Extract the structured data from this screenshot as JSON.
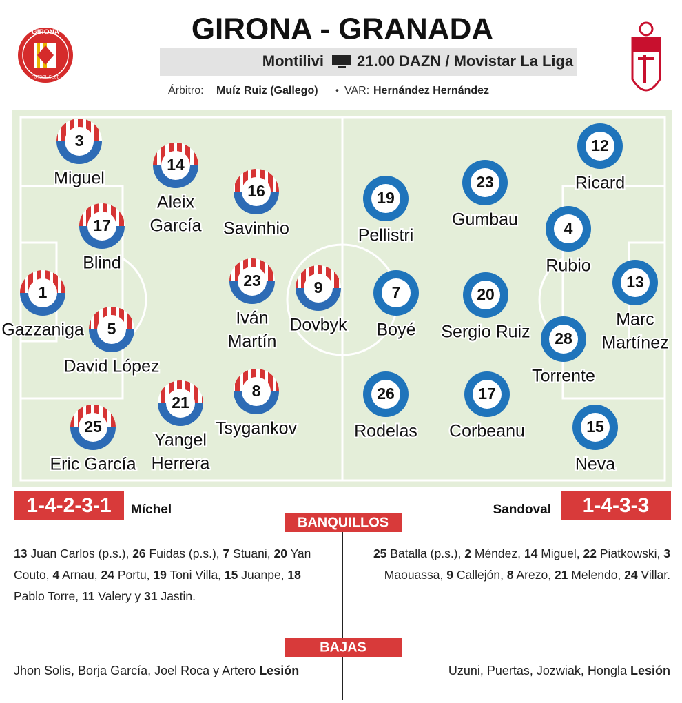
{
  "header": {
    "title": "GIRONA - GRANADA",
    "venue": "Montilivi",
    "broadcast": "21.00 DAZN / Movistar La Liga",
    "referee_label": "Árbitro:",
    "referee": "Muíz Ruiz (Gallego)",
    "separator": "•",
    "var_label": "VAR:",
    "var": "Hernández Hernández",
    "home_logo_text": "GIRONA",
    "home_logo_subtext": "FUTBOL CLUB"
  },
  "girona": {
    "formation": "1-4-2-3-1",
    "coach": "Míchel",
    "players": [
      {
        "number": 3,
        "name_lines": [
          "Miguel"
        ]
      },
      {
        "number": 14,
        "name_lines": [
          "Aleix",
          "García"
        ]
      },
      {
        "number": 16,
        "name_lines": [
          "Savinhio"
        ]
      },
      {
        "number": 17,
        "name_lines": [
          "Blind"
        ]
      },
      {
        "number": 1,
        "name_lines": [
          "Gazzaniga"
        ]
      },
      {
        "number": 5,
        "name_lines": [
          "David López"
        ]
      },
      {
        "number": 23,
        "name_lines": [
          "Iván",
          "Martín"
        ]
      },
      {
        "number": 9,
        "name_lines": [
          "Dovbyk"
        ]
      },
      {
        "number": 25,
        "name_lines": [
          "Eric García"
        ]
      },
      {
        "number": 21,
        "name_lines": [
          "Yangel",
          "Herrera"
        ]
      },
      {
        "number": 8,
        "name_lines": [
          "Tsygankov"
        ]
      }
    ],
    "bench": [
      {
        "number": 13,
        "text": "Juan Carlos (p.s.),"
      },
      {
        "number": 26,
        "text": "Fuidas (p.s.),"
      },
      {
        "number": 7,
        "text": "Stuani,"
      },
      {
        "number": 20,
        "text": "Yan Couto,"
      },
      {
        "number": 4,
        "text": "Arnau,"
      },
      {
        "number": 24,
        "text": "Portu,"
      },
      {
        "number": 19,
        "text": "Toni Villa,"
      },
      {
        "number": 15,
        "text": "Juanpe,"
      },
      {
        "number": 18,
        "text": "Pablo Torre,"
      },
      {
        "number": 11,
        "text": "Valery y"
      },
      {
        "number": 31,
        "text": "Jastin."
      }
    ],
    "absences": "Jhon Solis, Borja García, Joel Roca y Artero",
    "absence_reason": "Lesión"
  },
  "granada": {
    "formation": "1-4-3-3",
    "coach": "Sandoval",
    "players": [
      {
        "number": 12,
        "name_lines": [
          "Ricard"
        ]
      },
      {
        "number": 23,
        "name_lines": [
          "Gumbau"
        ]
      },
      {
        "number": 19,
        "name_lines": [
          "Pellistri"
        ]
      },
      {
        "number": 4,
        "name_lines": [
          "Rubio"
        ]
      },
      {
        "number": 13,
        "name_lines": [
          "Marc",
          "Martínez"
        ]
      },
      {
        "number": 7,
        "name_lines": [
          "Boyé"
        ]
      },
      {
        "number": 20,
        "name_lines": [
          "Sergio Ruiz"
        ]
      },
      {
        "number": 28,
        "name_lines": [
          "Torrente"
        ]
      },
      {
        "number": 26,
        "name_lines": [
          "Rodelas"
        ]
      },
      {
        "number": 17,
        "name_lines": [
          "Corbeanu"
        ]
      },
      {
        "number": 15,
        "name_lines": [
          "Neva"
        ]
      }
    ],
    "bench": [
      {
        "number": 25,
        "text": "Batalla (p.s.),"
      },
      {
        "number": 2,
        "text": "Méndez,"
      },
      {
        "number": 14,
        "text": "Miguel,"
      },
      {
        "number": 22,
        "text": "Piatkowski,"
      },
      {
        "number": 3,
        "text": "Maouassa,"
      },
      {
        "number": 9,
        "text": "Callejón,"
      },
      {
        "number": 8,
        "text": "Arezo,"
      },
      {
        "number": 21,
        "text": "Melendo,"
      },
      {
        "number": 24,
        "text": "Villar."
      }
    ],
    "absences": "Uzuni, Puertas, Jozwiak, Hongla",
    "absence_reason": "Lesión"
  },
  "sections": {
    "bench": "BANQUILLOS",
    "absences": "BAJAS"
  }
}
